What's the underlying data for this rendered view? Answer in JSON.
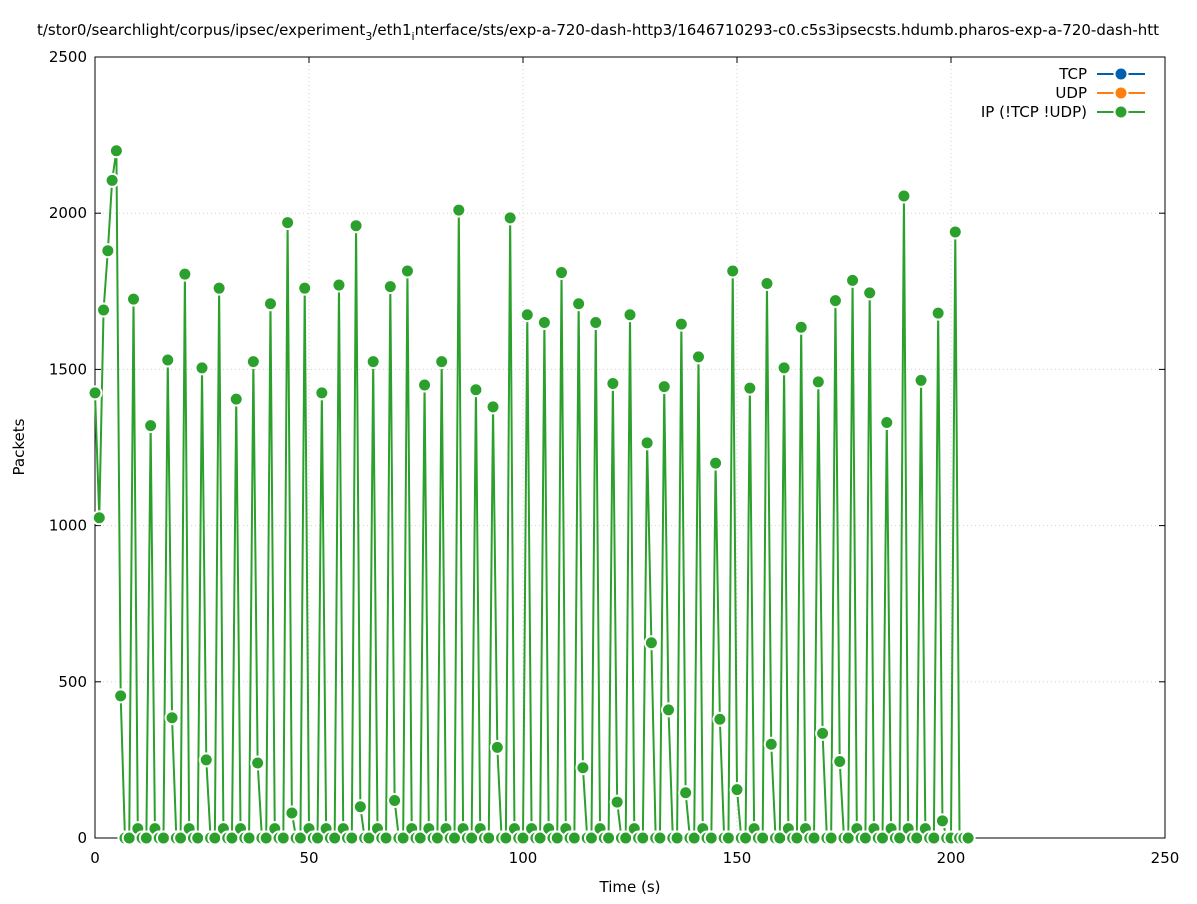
{
  "chart_data": {
    "type": "line",
    "title_parts": [
      {
        "text": "t/stor0/searchlight/corpus/ipsec/experiment",
        "sub": false
      },
      {
        "text": "3",
        "sub": true
      },
      {
        "text": "/eth1",
        "sub": false
      },
      {
        "text": "i",
        "sub": true
      },
      {
        "text": "nterface/sts/exp-a-720-dash-http3/1646710293-c0.c5s3ipsecsts.hdumb.pharos-exp-a-720-dash-htt",
        "sub": false
      }
    ],
    "xlabel": "Time (s)",
    "ylabel": "Packets",
    "xlim": [
      0,
      250
    ],
    "ylim": [
      0,
      2500
    ],
    "xticks": [
      0,
      50,
      100,
      150,
      200,
      250
    ],
    "yticks": [
      0,
      500,
      1000,
      1500,
      2000,
      2500
    ],
    "grid": true,
    "legend_position": "top-right",
    "x_start": 0,
    "x_step": 1,
    "series": [
      {
        "name": "TCP",
        "color": "#0060ad",
        "values": []
      },
      {
        "name": "UDP",
        "color": "#ff7f0e",
        "values": []
      },
      {
        "name": "IP (!TCP  !UDP)",
        "color": "#2ca02c",
        "values": [
          1425,
          1025,
          1690,
          1880,
          2105,
          2200,
          455,
          0,
          0,
          1725,
          30,
          0,
          0,
          1320,
          30,
          0,
          0,
          1530,
          385,
          0,
          0,
          1805,
          30,
          0,
          0,
          1505,
          250,
          0,
          0,
          1760,
          30,
          0,
          0,
          1405,
          30,
          0,
          0,
          1525,
          240,
          0,
          0,
          1710,
          30,
          0,
          0,
          1970,
          80,
          0,
          0,
          1760,
          30,
          0,
          0,
          1425,
          30,
          0,
          0,
          1770,
          30,
          0,
          0,
          1960,
          100,
          0,
          0,
          1525,
          30,
          0,
          0,
          1765,
          120,
          0,
          0,
          1815,
          30,
          0,
          0,
          1450,
          30,
          0,
          0,
          1525,
          30,
          0,
          0,
          2010,
          30,
          0,
          0,
          1435,
          30,
          0,
          0,
          1380,
          290,
          0,
          0,
          1985,
          30,
          0,
          0,
          1675,
          30,
          0,
          0,
          1650,
          30,
          0,
          0,
          1810,
          30,
          0,
          0,
          1710,
          225,
          0,
          0,
          1650,
          30,
          0,
          0,
          1455,
          115,
          0,
          0,
          1675,
          30,
          0,
          0,
          1265,
          625,
          0,
          0,
          1445,
          410,
          0,
          0,
          1645,
          145,
          0,
          0,
          1540,
          30,
          0,
          0,
          1200,
          380,
          0,
          0,
          1815,
          155,
          0,
          0,
          1440,
          30,
          0,
          0,
          1775,
          300,
          0,
          0,
          1505,
          30,
          0,
          0,
          1635,
          30,
          0,
          0,
          1460,
          335,
          0,
          0,
          1720,
          245,
          0,
          0,
          1785,
          30,
          0,
          0,
          1745,
          30,
          0,
          0,
          1330,
          30,
          0,
          0,
          2055,
          30,
          0,
          0,
          1465,
          30,
          0,
          0,
          1680,
          55,
          0,
          0,
          1940,
          0,
          0,
          0
        ]
      }
    ]
  }
}
